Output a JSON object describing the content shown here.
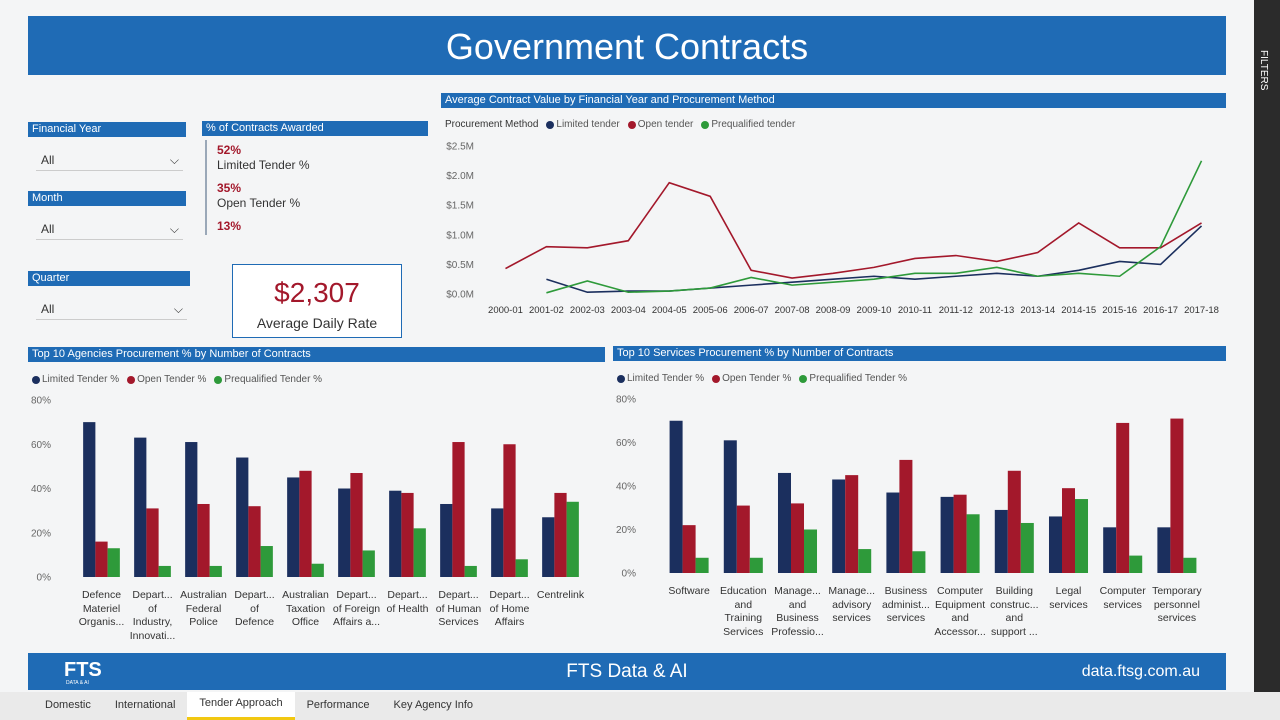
{
  "header": {
    "title": "Government Contracts"
  },
  "filters": [
    {
      "label": "Financial Year",
      "value": "All"
    },
    {
      "label": "Month",
      "value": "All"
    },
    {
      "label": "Quarter",
      "value": "All"
    }
  ],
  "contracts_awarded": {
    "title": "% of Contracts Awarded",
    "items": [
      {
        "value": "52%",
        "label": "Limited Tender %"
      },
      {
        "value": "35%",
        "label": "Open Tender %"
      },
      {
        "value": "13%"
      }
    ]
  },
  "kpi": {
    "value": "$2,307",
    "label": "Average Daily Rate"
  },
  "chart_data": [
    {
      "type": "line",
      "title": "Average Contract Value by Financial Year and Procurement Method",
      "legend_title": "Procurement Method",
      "grid": false,
      "categories": [
        "2000-01",
        "2001-02",
        "2002-03",
        "2003-04",
        "2004-05",
        "2005-06",
        "2006-07",
        "2007-08",
        "2008-09",
        "2009-10",
        "2010-11",
        "2011-12",
        "2012-13",
        "2013-14",
        "2014-15",
        "2015-16",
        "2016-17",
        "2017-18"
      ],
      "series": [
        {
          "name": "Limited tender",
          "color": "#1b2f5e",
          "values": [
            null,
            0.25,
            0.03,
            0.05,
            0.05,
            0.1,
            0.15,
            0.2,
            0.25,
            0.3,
            0.25,
            0.3,
            0.35,
            0.3,
            0.4,
            0.55,
            0.5,
            1.15
          ]
        },
        {
          "name": "Open tender",
          "color": "#a3182b",
          "values": [
            0.43,
            0.8,
            0.78,
            0.9,
            1.88,
            1.65,
            0.4,
            0.27,
            0.35,
            0.45,
            0.6,
            0.65,
            0.55,
            0.7,
            1.2,
            0.78,
            0.78,
            1.2
          ]
        },
        {
          "name": "Prequalified tender",
          "color": "#2e9a3a",
          "values": [
            null,
            0.02,
            0.22,
            0.03,
            0.05,
            0.1,
            0.28,
            0.15,
            0.2,
            0.25,
            0.35,
            0.35,
            0.45,
            0.3,
            0.35,
            0.3,
            0.8,
            2.25
          ]
        }
      ],
      "ylim": [
        0,
        2.5
      ],
      "yticks": [
        {
          "value": 0,
          "label": "$0.0M"
        },
        {
          "value": 0.5,
          "label": "$0.5M"
        },
        {
          "value": 1,
          "label": "$1.0M"
        },
        {
          "value": 1.5,
          "label": "$1.5M"
        },
        {
          "value": 2,
          "label": "$2.0M"
        },
        {
          "value": 2.5,
          "label": "$2.5M"
        }
      ]
    },
    {
      "type": "bar",
      "title": "Top 10 Agencies Procurement % by Number of Contracts",
      "grid": false,
      "categories": [
        "Defence Materiel Organis...",
        "Depart... of Industry, Innovati...",
        "Australian Federal Police",
        "Depart... of Defence",
        "Australian Taxation Office",
        "Depart... of Foreign Affairs a...",
        "Depart... of Health",
        "Depart... of Human Services",
        "Depart... of Home Affairs",
        "Centrelink"
      ],
      "series": [
        {
          "name": "Limited Tender %",
          "color": "#1b2f5e",
          "values": [
            70,
            63,
            61,
            54,
            45,
            40,
            39,
            33,
            31,
            27
          ]
        },
        {
          "name": "Open Tender %",
          "color": "#a3182b",
          "values": [
            16,
            31,
            33,
            32,
            48,
            47,
            38,
            61,
            60,
            38
          ]
        },
        {
          "name": "Prequalified Tender %",
          "color": "#2e9a3a",
          "values": [
            13,
            5,
            5,
            14,
            6,
            12,
            22,
            5,
            8,
            34
          ]
        }
      ],
      "ylim": [
        0,
        80
      ],
      "yticks": [
        {
          "value": 0,
          "label": "0%"
        },
        {
          "value": 20,
          "label": "20%"
        },
        {
          "value": 40,
          "label": "40%"
        },
        {
          "value": 60,
          "label": "60%"
        },
        {
          "value": 80,
          "label": "80%"
        }
      ]
    },
    {
      "type": "bar",
      "title": "Top 10 Services Procurement % by Number of Contracts",
      "grid": false,
      "categories": [
        "Software",
        "Education and Training Services",
        "Manage... and Business Professio...",
        "Manage... advisory services",
        "Business administ... services",
        "Computer Equipment and Accessor...",
        "Building construc... and support ...",
        "Legal services",
        "Computer services",
        "Temporary personnel services"
      ],
      "series": [
        {
          "name": "Limited Tender %",
          "color": "#1b2f5e",
          "values": [
            70,
            61,
            46,
            43,
            37,
            35,
            29,
            26,
            21,
            21
          ]
        },
        {
          "name": "Open Tender %",
          "color": "#a3182b",
          "values": [
            22,
            31,
            32,
            45,
            52,
            36,
            47,
            39,
            69,
            71
          ]
        },
        {
          "name": "Prequalified Tender %",
          "color": "#2e9a3a",
          "values": [
            7,
            7,
            20,
            11,
            10,
            27,
            23,
            34,
            8,
            7
          ]
        }
      ],
      "ylim": [
        0,
        80
      ],
      "yticks": [
        {
          "value": 0,
          "label": "0%"
        },
        {
          "value": 20,
          "label": "20%"
        },
        {
          "value": 40,
          "label": "40%"
        },
        {
          "value": 60,
          "label": "60%"
        },
        {
          "value": 80,
          "label": "80%"
        }
      ]
    }
  ],
  "footer": {
    "logo": "FTS",
    "logo_sub": "DATA & AI",
    "center": "FTS Data & AI",
    "url": "data.ftsg.com.au"
  },
  "sidebar": {
    "label": "FILTERS"
  },
  "tabs": [
    {
      "label": "Domestic",
      "active": false
    },
    {
      "label": "International",
      "active": false
    },
    {
      "label": "Tender Approach",
      "active": true
    },
    {
      "label": "Performance",
      "active": false
    },
    {
      "label": "Key Agency Info",
      "active": false
    }
  ]
}
